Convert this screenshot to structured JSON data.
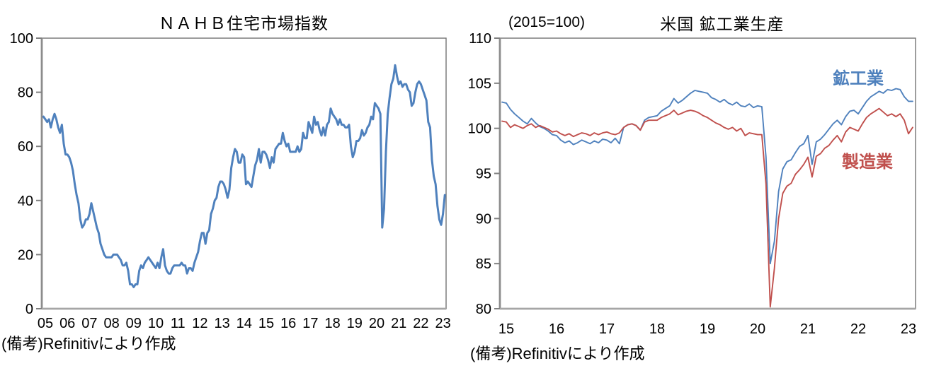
{
  "page_background": "#ffffff",
  "text_color": "#000000",
  "chart_data": [
    {
      "type": "line",
      "title": "ＮＡＨＢ住宅市場指数",
      "caption": "(備考)Refinitivにより作成",
      "xlabel": "",
      "ylabel": "",
      "grid": false,
      "axis_color": "#808080",
      "ylim": [
        0,
        100
      ],
      "y_ticks": [
        0,
        20,
        40,
        60,
        80,
        100
      ],
      "x_tick_labels": [
        "05",
        "06",
        "07",
        "08",
        "09",
        "10",
        "11",
        "12",
        "13",
        "14",
        "15",
        "16",
        "17",
        "18",
        "19",
        "20",
        "21",
        "22",
        "23"
      ],
      "frequency": "monthly",
      "series": [
        {
          "name": "ＮＡＨＢ住宅市場指数",
          "color": "#4F81BD",
          "start_year": 2004,
          "start_month": 12,
          "values": [
            71,
            70,
            69,
            70,
            67,
            70,
            72,
            70,
            67,
            65,
            68,
            61,
            57,
            57,
            56,
            54,
            51,
            46,
            42,
            39,
            33,
            30,
            31,
            33,
            33,
            35,
            39,
            36,
            33,
            30,
            28,
            24,
            22,
            20,
            19,
            19,
            19,
            19,
            20,
            20,
            20,
            19,
            18,
            16,
            16,
            17,
            14,
            9,
            9,
            8,
            9,
            9,
            14,
            16,
            15,
            17,
            18,
            19,
            18,
            17,
            16,
            15,
            17,
            15,
            19,
            22,
            16,
            14,
            13,
            13,
            15,
            16,
            16,
            16,
            16,
            17,
            16,
            16,
            13,
            15,
            15,
            14,
            17,
            19,
            21,
            25,
            28,
            28,
            24,
            28,
            29,
            35,
            37,
            40,
            41,
            45,
            47,
            47,
            46,
            44,
            41,
            44,
            52,
            56,
            59,
            58,
            54,
            54,
            57,
            56,
            46,
            47,
            46,
            45,
            49,
            53,
            55,
            59,
            54,
            58,
            58,
            57,
            55,
            52,
            56,
            54,
            59,
            60,
            61,
            61,
            65,
            62,
            60,
            61,
            58,
            58,
            58,
            58,
            60,
            58,
            59,
            65,
            63,
            63,
            69,
            67,
            65,
            71,
            68,
            69,
            66,
            64,
            67,
            64,
            68,
            69,
            74,
            72,
            71,
            70,
            68,
            70,
            68,
            68,
            67,
            67,
            68,
            60,
            56,
            58,
            62,
            62,
            63,
            66,
            64,
            65,
            67,
            68,
            71,
            70,
            76,
            75,
            74,
            72,
            30,
            37,
            58,
            72,
            78,
            83,
            85,
            90,
            86,
            83,
            84,
            82,
            83,
            83,
            81,
            80,
            75,
            76,
            80,
            83,
            84,
            83,
            81,
            79,
            77,
            69,
            67,
            55,
            49,
            46,
            38,
            33,
            31,
            35,
            42
          ]
        }
      ]
    },
    {
      "type": "line",
      "title": "米国 鉱工業生産",
      "unit_note": "(2015=100)",
      "caption": "(備考)Refinitivにより作成",
      "xlabel": "",
      "ylabel": "",
      "grid": false,
      "axis_color": "#808080",
      "ylim": [
        80,
        110
      ],
      "y_ticks": [
        80,
        85,
        90,
        95,
        100,
        105,
        110
      ],
      "x_tick_labels": [
        "15",
        "16",
        "17",
        "18",
        "19",
        "20",
        "21",
        "22",
        "23"
      ],
      "frequency": "monthly",
      "legend_position": "inline-labels",
      "series": [
        {
          "name": "鉱工業",
          "color": "#4F81BD",
          "start_year": 2014,
          "start_month": 12,
          "values": [
            102.9,
            102.8,
            102.1,
            101.6,
            101.2,
            100.8,
            100.5,
            101.1,
            100.6,
            100.2,
            100.0,
            99.7,
            99.3,
            99.2,
            98.7,
            98.4,
            98.6,
            98.2,
            98.4,
            98.7,
            98.5,
            98.3,
            98.6,
            98.4,
            98.8,
            98.7,
            98.4,
            98.9,
            98.3,
            100.1,
            100.4,
            100.5,
            100.3,
            99.8,
            100.9,
            101.2,
            101.3,
            101.4,
            101.9,
            102.2,
            102.5,
            103.3,
            102.8,
            103.1,
            103.5,
            103.9,
            104.2,
            104.1,
            104.0,
            103.9,
            103.4,
            103.2,
            102.9,
            103.2,
            102.8,
            102.6,
            102.9,
            102.5,
            102.4,
            102.7,
            102.3,
            102.5,
            102.4,
            96.8,
            85.0,
            87.5,
            93.0,
            95.5,
            96.3,
            96.5,
            97.3,
            98.0,
            98.3,
            99.2,
            96.0,
            98.5,
            98.8,
            99.3,
            99.9,
            100.5,
            100.9,
            100.4,
            101.3,
            101.9,
            102.0,
            101.6,
            102.3,
            103.0,
            103.5,
            103.8,
            104.1,
            103.9,
            104.3,
            104.2,
            104.4,
            104.3,
            103.5,
            103.0,
            103.0
          ]
        },
        {
          "name": "製造業",
          "color": "#C0504D",
          "start_year": 2014,
          "start_month": 12,
          "values": [
            100.8,
            100.7,
            100.1,
            100.4,
            100.2,
            100.0,
            100.3,
            100.5,
            100.1,
            100.3,
            100.1,
            99.9,
            99.6,
            99.7,
            99.4,
            99.2,
            99.4,
            99.1,
            99.3,
            99.5,
            99.4,
            99.2,
            99.5,
            99.3,
            99.5,
            99.6,
            99.4,
            99.3,
            99.5,
            100.1,
            100.4,
            100.5,
            100.3,
            99.8,
            100.7,
            100.9,
            100.9,
            100.9,
            101.2,
            101.4,
            101.6,
            102.0,
            101.5,
            101.7,
            101.9,
            102.0,
            101.9,
            101.7,
            101.4,
            101.2,
            100.9,
            100.6,
            100.4,
            100.1,
            99.9,
            100.1,
            99.7,
            100.0,
            99.2,
            99.5,
            99.4,
            99.3,
            99.3,
            93.8,
            80.2,
            84.5,
            90.0,
            92.8,
            93.6,
            93.9,
            94.9,
            95.4,
            96.0,
            96.8,
            94.6,
            96.9,
            97.2,
            97.8,
            98.1,
            98.7,
            99.2,
            98.5,
            99.6,
            100.1,
            99.9,
            99.7,
            100.5,
            101.2,
            101.6,
            101.9,
            102.2,
            101.8,
            101.4,
            101.6,
            101.3,
            101.6,
            100.9,
            99.4,
            100.1
          ]
        }
      ]
    }
  ]
}
